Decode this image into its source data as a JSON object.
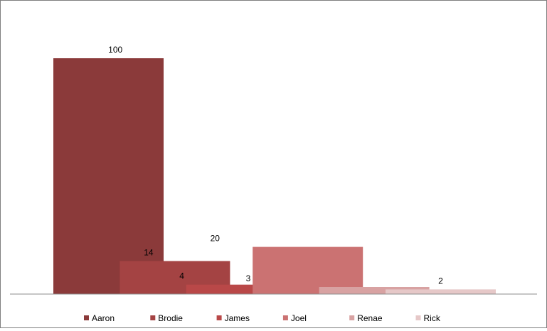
{
  "chart_data": {
    "type": "bar",
    "title": "",
    "xlabel": "",
    "ylabel": "",
    "ylim": [
      0,
      100
    ],
    "grid": false,
    "legend_position": "bottom",
    "series": [
      {
        "name": "Aaron",
        "value": 100,
        "color": "#8b3a3a"
      },
      {
        "name": "Brodie",
        "value": 14,
        "color": "#a44343"
      },
      {
        "name": "James",
        "value": 4,
        "color": "#b94848"
      },
      {
        "name": "Joel",
        "value": 20,
        "color": "#cb7272"
      },
      {
        "name": "Renae",
        "value": 3,
        "color": "#d8a2a2"
      },
      {
        "name": "Rick",
        "value": 2,
        "color": "#e6c8c8"
      }
    ]
  }
}
